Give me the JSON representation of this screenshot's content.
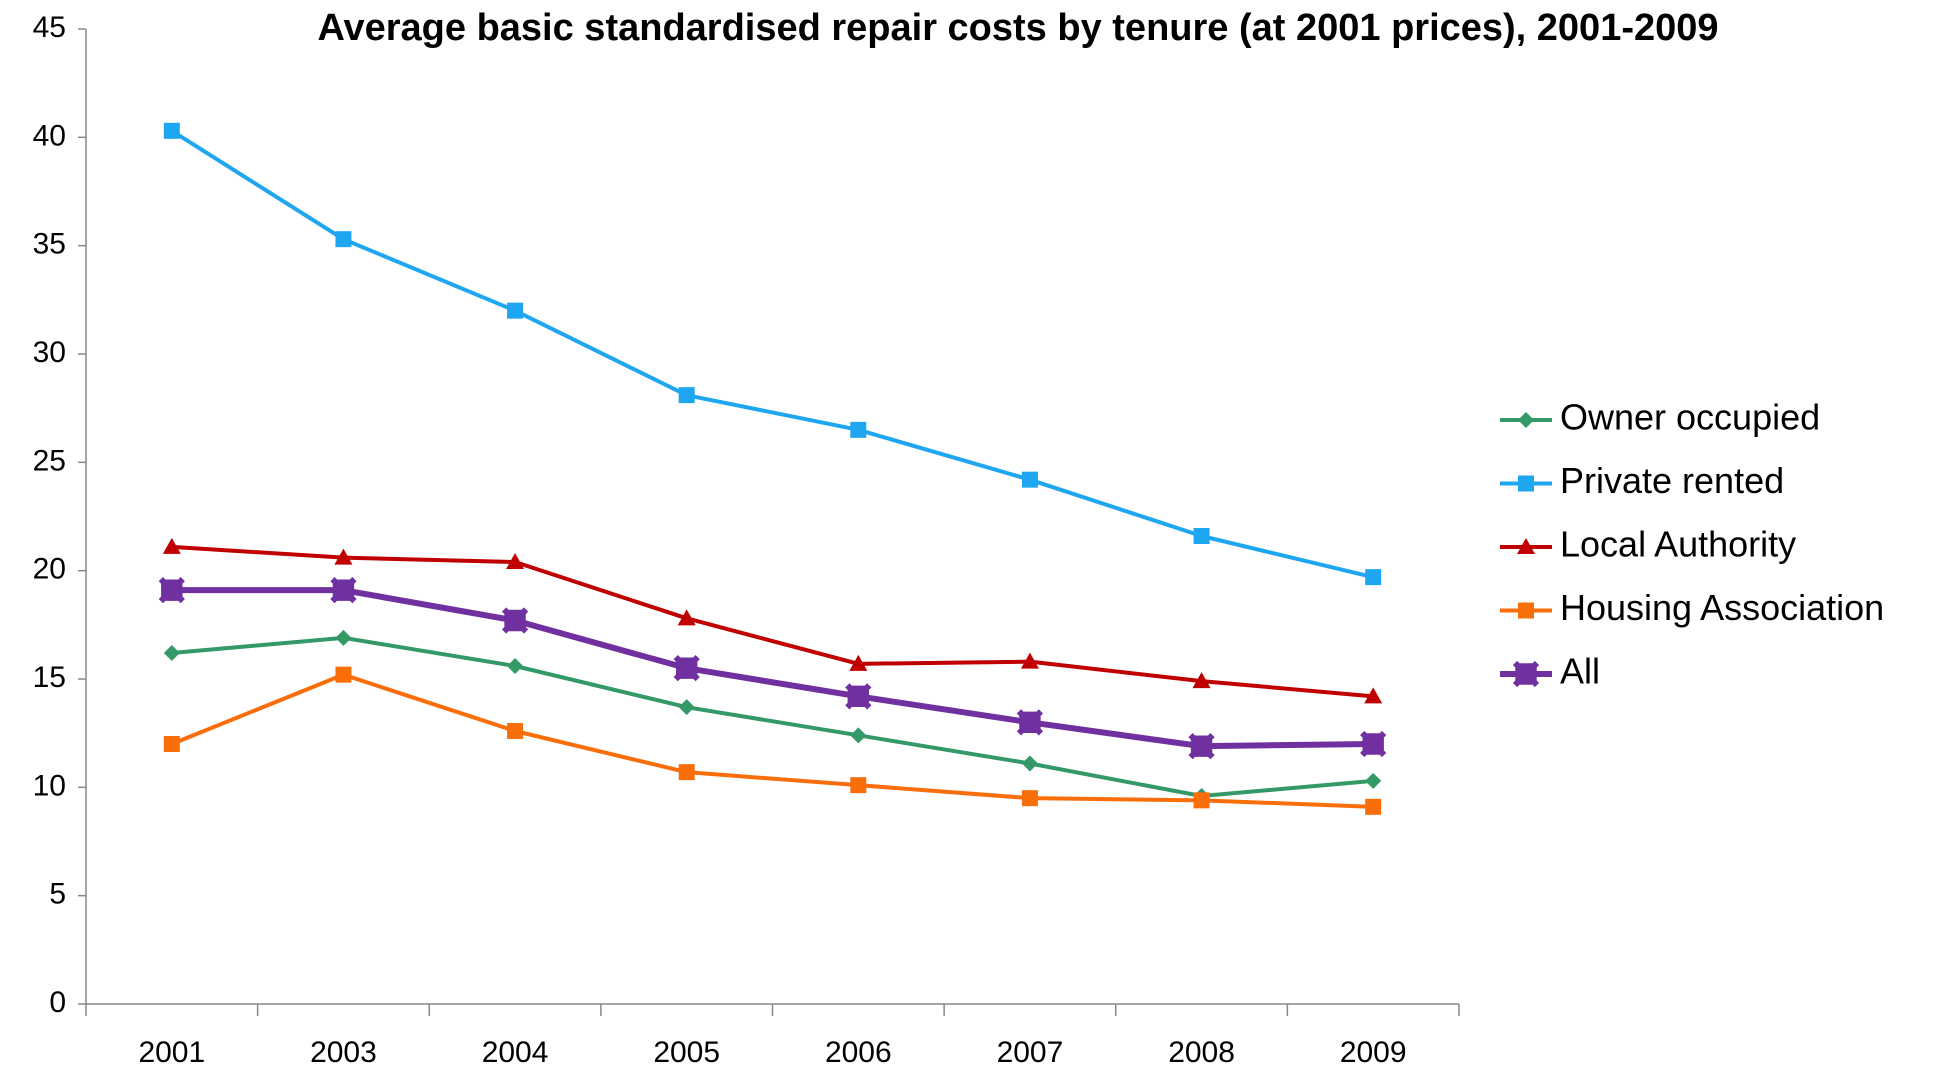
{
  "chart_data": {
    "type": "line",
    "title": "Average basic standardised repair costs by tenure (at 2001 prices), 2001-2009",
    "categories": [
      "2001",
      "2003",
      "2004",
      "2005",
      "2006",
      "2007",
      "2008",
      "2009"
    ],
    "series": [
      {
        "name": "Owner occupied",
        "color": "#339966",
        "marker": "diamond",
        "values": [
          16.2,
          16.9,
          15.6,
          13.7,
          12.4,
          11.1,
          9.6,
          10.3
        ]
      },
      {
        "name": "Private rented",
        "color": "#1fa6f0",
        "marker": "square",
        "values": [
          40.3,
          35.3,
          32.0,
          28.1,
          26.5,
          24.2,
          21.6,
          19.7
        ]
      },
      {
        "name": "Local Authority",
        "color": "#c00000",
        "marker": "triangle",
        "values": [
          21.1,
          20.6,
          20.4,
          17.8,
          15.7,
          15.8,
          14.9,
          14.2
        ]
      },
      {
        "name": "Housing Association",
        "color": "#fa6e0a",
        "marker": "square",
        "values": [
          12.0,
          15.2,
          12.6,
          10.7,
          10.1,
          9.5,
          9.4,
          9.1
        ]
      },
      {
        "name": "All",
        "color": "#7030a0",
        "marker": "star",
        "values": [
          19.1,
          19.1,
          17.7,
          15.5,
          14.2,
          13.0,
          11.9,
          12.0
        ]
      }
    ],
    "ylim": [
      0,
      45
    ],
    "yticks": [
      0,
      5,
      10,
      15,
      20,
      25,
      30,
      35,
      40,
      45
    ],
    "grid": false,
    "legend": "right"
  }
}
